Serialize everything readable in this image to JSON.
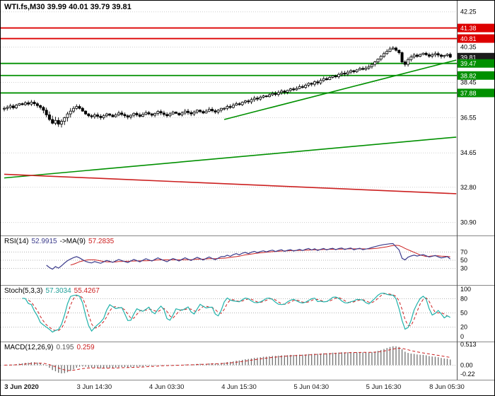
{
  "window": {
    "title": "WTI.fs,M30 39.99 40.01 39.79 39.81",
    "symbol": "WTI.fs",
    "period": "M30",
    "ohlc": {
      "open": "39.99",
      "high": "40.01",
      "low": "39.79",
      "close": "39.81"
    }
  },
  "colors": {
    "background": "#ffffff",
    "grid": "#cfcfcf",
    "bull": "#ffffff",
    "bear": "#000000",
    "candle_outline": "#000000",
    "resistance": "#dd0000",
    "support": "#009000",
    "tag_red": "#dd0000",
    "tag_green": "#009000",
    "tag_black": "#1c1c1c",
    "rsi_line": "#3c3c8c",
    "rsi_ma": "#cc2020",
    "stoch_main": "#20b2aa",
    "stoch_signal": "#cc2020",
    "macd_hist": "#707070",
    "macd_signal": "#cc2020",
    "trend_green": "#009000",
    "trend_red": "#cc2020"
  },
  "chart_data": {
    "type": "candlestick",
    "title": "WTI.fs,M30 39.99 40.01 39.79 39.81",
    "price_axis": {
      "max": 42.85,
      "min": 30.2,
      "values": [
        42.25,
        40.35,
        38.45,
        36.55,
        34.65,
        32.8,
        30.9
      ],
      "labels": [
        "42.25",
        "40.35",
        "38.45",
        "36.55",
        "34.65",
        "32.80",
        "30.90"
      ]
    },
    "time_axis": {
      "labels": [
        "3 Jun 2020",
        "3 Jun 14:30",
        "4 Jun 03:30",
        "4 Jun 15:30",
        "5 Jun 04:30",
        "5 Jun 16:30",
        "8 Jun 05:30"
      ],
      "candle_index": [
        1,
        25,
        49,
        73,
        97,
        121,
        142
      ]
    },
    "levels": [
      {
        "price": 41.38,
        "label": "41.38",
        "type": "resistance",
        "color": "red",
        "line": true
      },
      {
        "price": 40.81,
        "label": "40.81",
        "type": "resistance",
        "color": "red",
        "line": true
      },
      {
        "price": 39.81,
        "label": "39.81",
        "type": "current",
        "color": "black",
        "line": false
      },
      {
        "price": 39.47,
        "label": "39.47",
        "type": "support",
        "color": "green",
        "line": true
      },
      {
        "price": 38.82,
        "label": "38.82",
        "type": "support",
        "color": "green",
        "line": true
      },
      {
        "price": 37.88,
        "label": "37.88",
        "type": "support",
        "color": "green",
        "line": true
      }
    ],
    "trendlines": [
      {
        "from_index": 73,
        "from_price": 36.45,
        "to_index": 150,
        "to_price": 39.65,
        "color": "green"
      },
      {
        "from_index": 0,
        "from_price": 33.3,
        "to_index": 150,
        "to_price": 35.5,
        "color": "green"
      },
      {
        "from_index": 0,
        "from_price": 33.5,
        "to_index": 150,
        "to_price": 32.45,
        "color": "red"
      }
    ],
    "closes": [
      37.05,
      37.1,
      37.18,
      37.08,
      37.22,
      37.3,
      37.25,
      37.35,
      37.28,
      37.38,
      37.3,
      37.2,
      37.1,
      36.95,
      36.7,
      36.45,
      36.25,
      36.4,
      36.2,
      36.35,
      36.55,
      36.75,
      36.9,
      37.05,
      37.15,
      37.05,
      36.9,
      36.75,
      36.65,
      36.6,
      36.7,
      36.62,
      36.55,
      36.65,
      36.75,
      36.68,
      36.6,
      36.7,
      36.8,
      36.72,
      36.65,
      36.58,
      36.68,
      36.78,
      36.7,
      36.62,
      36.72,
      36.82,
      36.75,
      36.68,
      36.78,
      36.88,
      36.8,
      36.72,
      36.65,
      36.75,
      36.85,
      36.78,
      36.7,
      36.8,
      36.9,
      36.82,
      36.75,
      36.85,
      36.95,
      36.88,
      36.8,
      36.9,
      37.0,
      36.92,
      36.85,
      36.95,
      37.05,
      37.05,
      37.15,
      37.1,
      37.22,
      37.3,
      37.25,
      37.38,
      37.45,
      37.4,
      37.52,
      37.6,
      37.55,
      37.65,
      37.72,
      37.68,
      37.78,
      37.85,
      37.8,
      37.9,
      37.98,
      37.92,
      38.02,
      38.1,
      38.05,
      38.12,
      38.22,
      38.18,
      38.3,
      38.4,
      38.35,
      38.48,
      38.42,
      38.55,
      38.65,
      38.6,
      38.72,
      38.8,
      38.75,
      38.88,
      38.95,
      38.9,
      39.0,
      39.08,
      39.02,
      39.12,
      39.2,
      39.15,
      39.22,
      39.3,
      39.42,
      39.55,
      39.7,
      39.85,
      40.0,
      40.12,
      40.25,
      40.3,
      40.18,
      40.05,
      39.55,
      39.42,
      39.68,
      39.82,
      39.92,
      39.85,
      39.95,
      40.02,
      39.94,
      39.86,
      39.93,
      40.0,
      39.92,
      39.85,
      39.9,
      39.96,
      39.81
    ],
    "indicators": {
      "rsi": {
        "name": "RSI(14)",
        "value": "52.9915",
        "ma_name": "->MA(9)",
        "ma_value": "57.2835",
        "period": 14,
        "ma_period": 9,
        "levels": [
          70,
          50,
          30
        ],
        "axis_values": [
          70,
          50,
          30
        ],
        "axis_labels": [
          "70",
          "50",
          "30"
        ]
      },
      "stoch": {
        "name": "Stoch(5,3,3)",
        "value": "57.3034",
        "signal_value": "55.4267",
        "k_period": 5,
        "d_period": 3,
        "slowing": 3,
        "levels": [
          80,
          50,
          20
        ],
        "axis_values": [
          100,
          80,
          50,
          20,
          0
        ],
        "axis_labels": [
          "100",
          "80",
          "50",
          "20",
          "0"
        ]
      },
      "macd": {
        "name": "MACD(12,26,9)",
        "value": "0.195",
        "signal_value": "0.259",
        "fast": 12,
        "slow": 26,
        "signal": 9,
        "max": 0.513,
        "min": -0.22,
        "axis_values": [
          0.513,
          0,
          -0.22
        ],
        "axis_labels": [
          "0.513",
          "0.00",
          "-0.22"
        ]
      }
    }
  }
}
